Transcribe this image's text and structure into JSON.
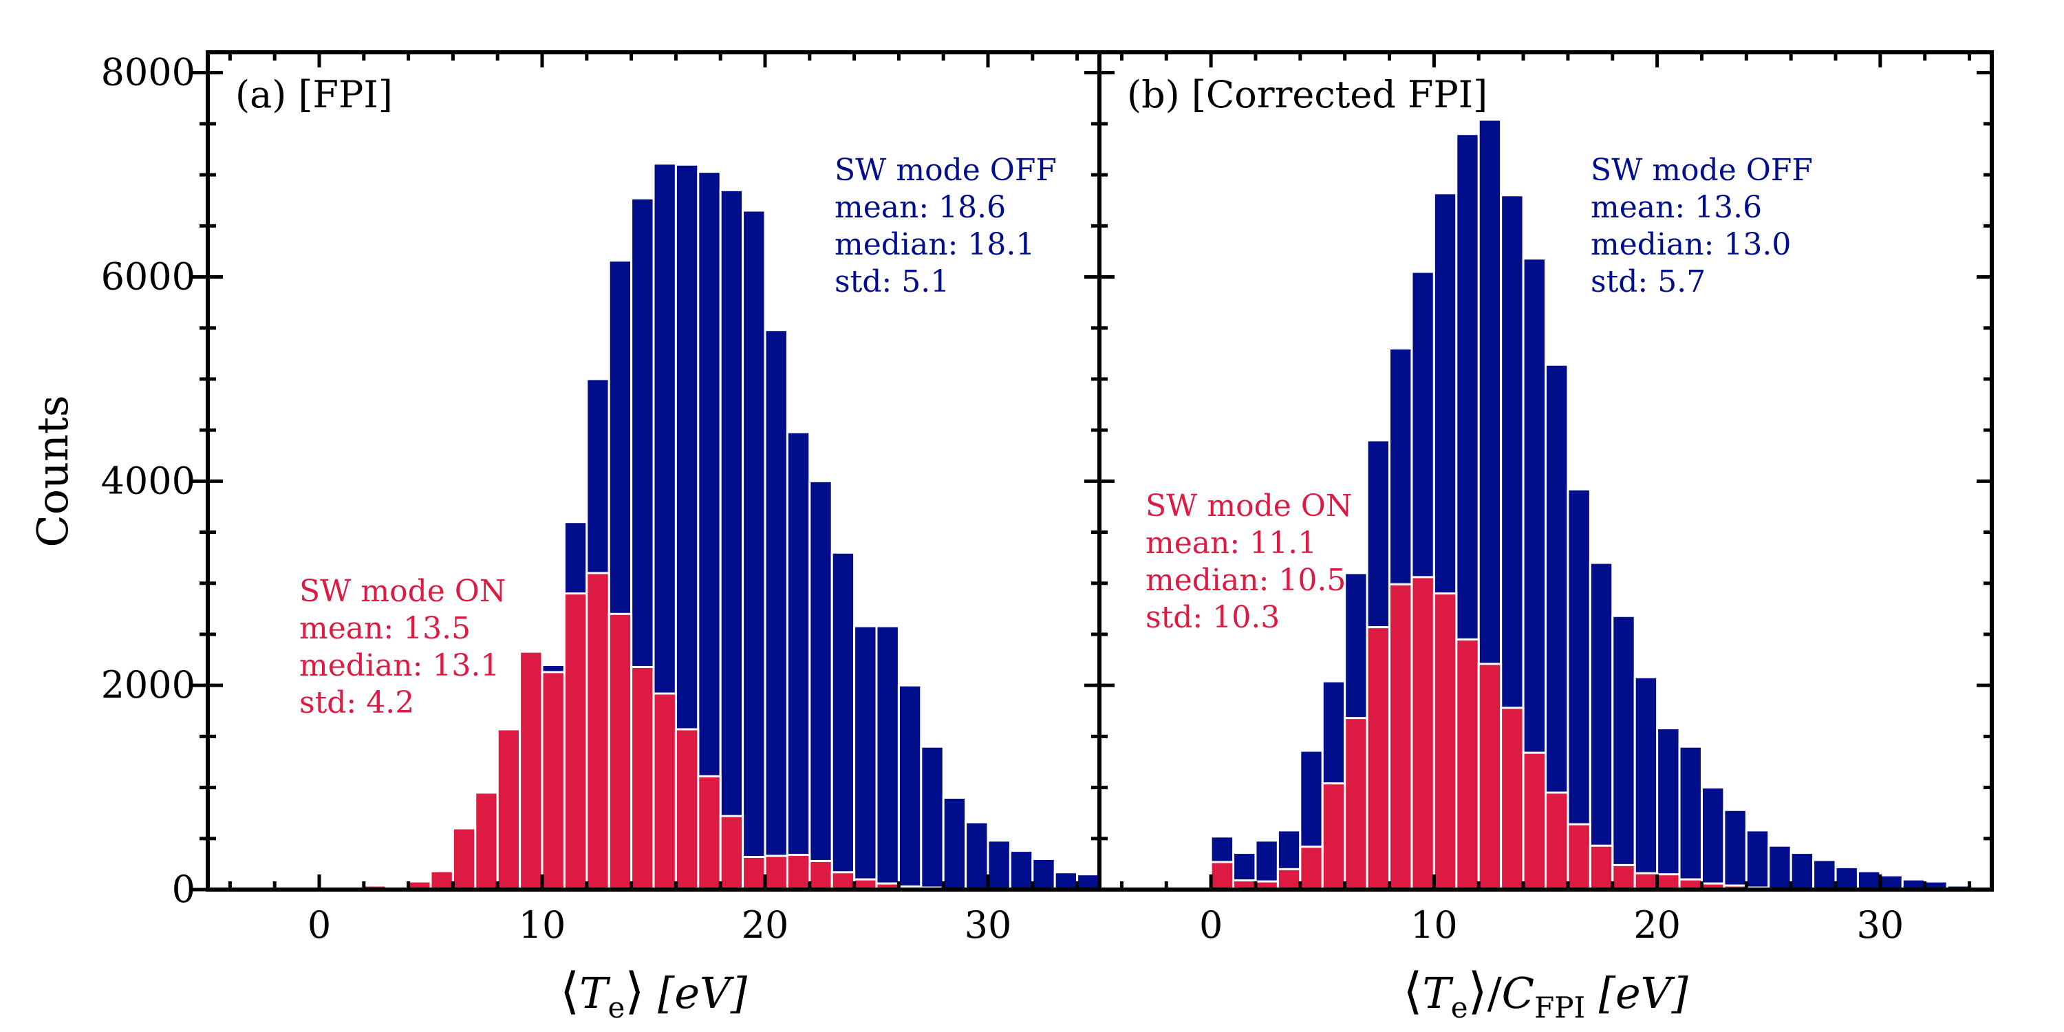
{
  "colors": {
    "off": "#000e8c",
    "on": "#dc1a42",
    "axis": "#000000",
    "bar_edge": "#ffffff"
  },
  "ylabel": "Counts",
  "chart_data": [
    {
      "type": "bar",
      "panel_label": "(a) [FPI]",
      "xlabel_parts": {
        "open": "⟨",
        "var": "T",
        "sub": "e",
        "close": "⟩",
        "unit": " [eV]"
      },
      "xlim": [
        -5,
        35
      ],
      "ylim": [
        0,
        8200
      ],
      "xticks": [
        "0",
        "10",
        "20",
        "30"
      ],
      "yticks": [
        "0",
        "2000",
        "4000",
        "6000",
        "8000"
      ],
      "bin_width": 1,
      "x": [
        0.5,
        1.5,
        2.5,
        3.5,
        4.5,
        5.5,
        6.5,
        7.5,
        8.5,
        9.5,
        10.5,
        11.5,
        12.5,
        13.5,
        14.5,
        15.5,
        16.5,
        17.5,
        18.5,
        19.5,
        20.5,
        21.5,
        22.5,
        23.5,
        24.5,
        25.5,
        26.5,
        27.5,
        28.5,
        29.5,
        30.5,
        31.5,
        32.5,
        33.5,
        34.5
      ],
      "series": [
        {
          "name": "SW mode OFF",
          "values": [
            0,
            0,
            40,
            20,
            80,
            180,
            600,
            950,
            1570,
            2330,
            2200,
            3600,
            5000,
            6160,
            6770,
            7110,
            7100,
            7030,
            6850,
            6650,
            5480,
            4480,
            4000,
            3300,
            2580,
            2580,
            2000,
            1400,
            900,
            660,
            480,
            380,
            300,
            170,
            150
          ]
        },
        {
          "name": "SW mode ON",
          "values": [
            0,
            0,
            40,
            20,
            80,
            180,
            600,
            950,
            1570,
            2330,
            2130,
            2900,
            3100,
            2700,
            2180,
            1920,
            1570,
            1110,
            720,
            320,
            330,
            340,
            280,
            170,
            100,
            60,
            30,
            20,
            10,
            5,
            0,
            0,
            0,
            0,
            0
          ]
        }
      ],
      "annotations": {
        "off": [
          "SW mode OFF",
          "mean: 18.6",
          "median: 18.1",
          "std: 5.1"
        ],
        "on": [
          "SW mode ON",
          "mean: 13.5",
          "median: 13.1",
          "std: 4.2"
        ]
      }
    },
    {
      "type": "bar",
      "panel_label": "(b) [Corrected FPI]",
      "xlabel_parts": {
        "open": "⟨",
        "var": "T",
        "sub": "e",
        "close": "⟩",
        "slash": "/",
        "var2": "C",
        "sub2": "FPI",
        "unit": " [eV]"
      },
      "xlim": [
        -5,
        35
      ],
      "ylim": [
        0,
        8200
      ],
      "xticks": [
        "0",
        "10",
        "20",
        "30"
      ],
      "yticks": [
        "0",
        "2000",
        "4000",
        "6000",
        "8000"
      ],
      "bin_width": 1,
      "x": [
        0.5,
        1.5,
        2.5,
        3.5,
        4.5,
        5.5,
        6.5,
        7.5,
        8.5,
        9.5,
        10.5,
        11.5,
        12.5,
        13.5,
        14.5,
        15.5,
        16.5,
        17.5,
        18.5,
        19.5,
        20.5,
        21.5,
        22.5,
        23.5,
        24.5,
        25.5,
        26.5,
        27.5,
        28.5,
        29.5,
        30.5,
        31.5,
        32.5,
        33.5
      ],
      "series": [
        {
          "name": "SW mode OFF",
          "values": [
            520,
            360,
            480,
            580,
            1360,
            2040,
            3100,
            4400,
            5300,
            6050,
            6820,
            7400,
            7540,
            6800,
            6180,
            5140,
            3920,
            3200,
            2680,
            2080,
            1580,
            1400,
            1000,
            780,
            580,
            430,
            360,
            290,
            220,
            180,
            140,
            100,
            80,
            40
          ]
        },
        {
          "name": "SW mode ON",
          "values": [
            270,
            90,
            80,
            200,
            420,
            1040,
            1680,
            2570,
            2990,
            3060,
            2900,
            2450,
            2210,
            1780,
            1340,
            950,
            640,
            430,
            240,
            160,
            150,
            100,
            60,
            40,
            20,
            10,
            5,
            0,
            0,
            0,
            0,
            0,
            0,
            0
          ]
        }
      ],
      "annotations": {
        "off": [
          "SW mode OFF",
          "mean: 13.6",
          "median: 13.0",
          "std: 5.7"
        ],
        "on": [
          "SW mode ON",
          "mean: 11.1",
          "median: 10.5",
          "std: 10.3"
        ]
      }
    }
  ]
}
